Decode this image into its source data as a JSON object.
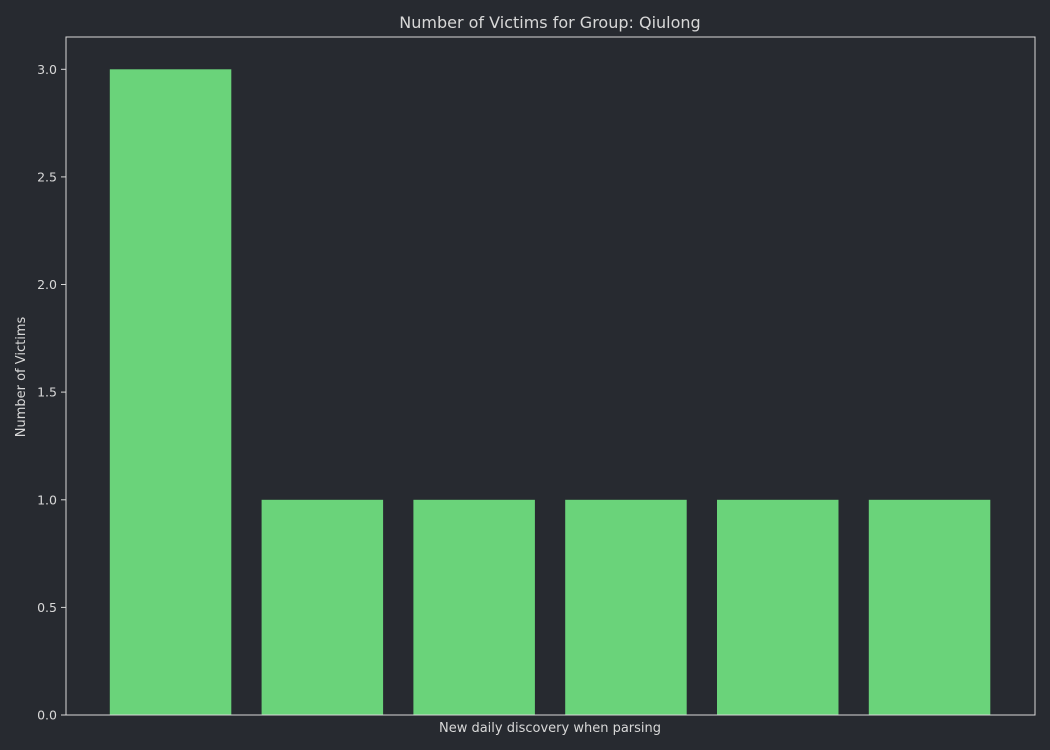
{
  "chart_data": {
    "type": "bar",
    "title": "Number of Victims for Group: Qiulong",
    "xlabel": "New daily discovery when parsing",
    "ylabel": "Number of Victims",
    "categories": [
      "",
      "",
      "",
      "",
      "",
      ""
    ],
    "values": [
      3,
      1,
      1,
      1,
      1,
      1
    ],
    "ylim": [
      0,
      3.15
    ],
    "yticks": [
      "0.0",
      "0.5",
      "1.0",
      "1.5",
      "2.0",
      "2.5",
      "3.0"
    ],
    "grid": false,
    "bar_color": "#6ad37a",
    "background_color": "#272a30",
    "axis_color": "#d8d8d8"
  }
}
